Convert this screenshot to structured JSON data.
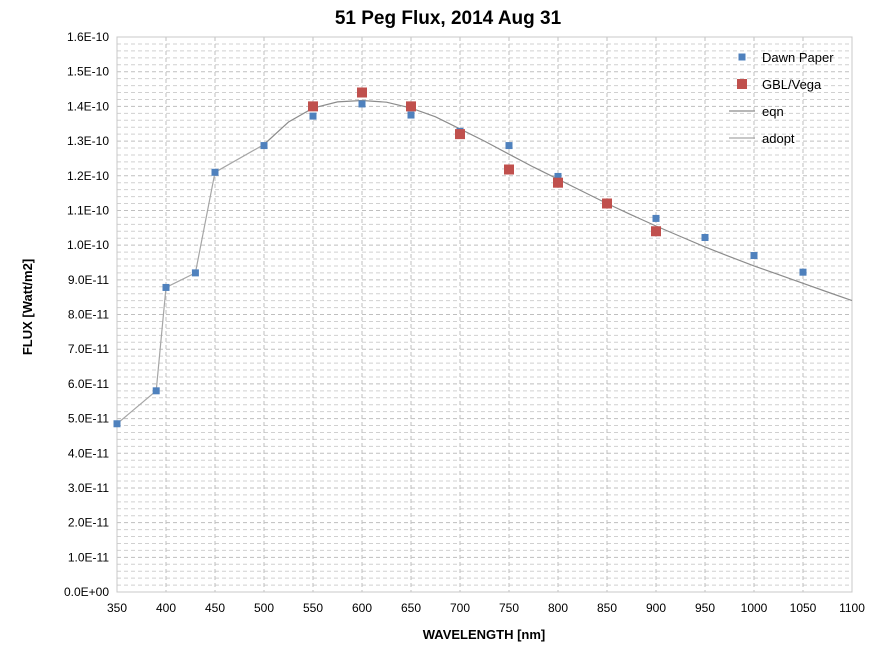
{
  "chart_data": {
    "type": "scatter",
    "title": "51 Peg Flux, 2014 Aug 31",
    "xlabel": "WAVELENGTH [nm]",
    "ylabel": "FLUX [Watt/m2]",
    "xlim": [
      350,
      1100
    ],
    "ylim": [
      0,
      1.6e-10
    ],
    "x_ticks": [
      350,
      400,
      450,
      500,
      550,
      600,
      650,
      700,
      750,
      800,
      850,
      900,
      950,
      1000,
      1050,
      1100
    ],
    "x_tick_labels": [
      "350",
      "400",
      "450",
      "500",
      "550",
      "600",
      "650",
      "700",
      "750",
      "800",
      "850",
      "900",
      "950",
      "1000",
      "1050",
      "1100"
    ],
    "y_ticks": [
      0,
      1e-11,
      2e-11,
      3e-11,
      4e-11,
      5e-11,
      6e-11,
      7e-11,
      8e-11,
      9e-11,
      1e-10,
      1.1e-10,
      1.2e-10,
      1.3e-10,
      1.4e-10,
      1.5e-10,
      1.6e-10
    ],
    "y_tick_labels": [
      "0.0E+00",
      "1.0E-11",
      "2.0E-11",
      "3.0E-11",
      "4.0E-11",
      "5.0E-11",
      "6.0E-11",
      "7.0E-11",
      "8.0E-11",
      "9.0E-11",
      "1.0E-10",
      "1.1E-10",
      "1.2E-10",
      "1.3E-10",
      "1.4E-10",
      "1.5E-10",
      "1.6E-10"
    ],
    "grid": true,
    "minor_grid": true,
    "legend_position": "top-right",
    "series": [
      {
        "name": "Dawn Paper",
        "kind": "markers",
        "color": "#4f81bd",
        "x": [
          350,
          390,
          400,
          430,
          450,
          500,
          550,
          600,
          650,
          700,
          750,
          800,
          900,
          950,
          1000,
          1050
        ],
        "y": [
          4.85e-11,
          5.8e-11,
          8.78e-11,
          9.2e-11,
          1.21e-10,
          1.287e-10,
          1.372e-10,
          1.407e-10,
          1.375e-10,
          1.328e-10,
          1.287e-10,
          1.198e-10,
          1.077e-10,
          1.022e-10,
          9.7e-11,
          9.22e-11
        ]
      },
      {
        "name": "GBL/Vega",
        "kind": "markers",
        "color": "#c0504d",
        "x": [
          550,
          600,
          650,
          700,
          750,
          800,
          850,
          900
        ],
        "y": [
          1.4e-10,
          1.44e-10,
          1.4e-10,
          1.32e-10,
          1.218e-10,
          1.18e-10,
          1.12e-10,
          1.04e-10
        ]
      },
      {
        "name": "eqn",
        "kind": "line",
        "color": "#8c8c8c",
        "x": [
          500,
          525,
          550,
          575,
          600,
          625,
          650,
          675,
          700,
          725,
          750,
          775,
          800,
          825,
          850,
          875,
          900,
          925,
          950,
          975,
          1000,
          1025,
          1050,
          1075,
          1100
        ],
        "y": [
          1.29e-10,
          1.355e-10,
          1.395e-10,
          1.413e-10,
          1.417e-10,
          1.412e-10,
          1.395e-10,
          1.37e-10,
          1.335e-10,
          1.3e-10,
          1.262e-10,
          1.225e-10,
          1.19e-10,
          1.155e-10,
          1.12e-10,
          1.087e-10,
          1.055e-10,
          1.025e-10,
          9.95e-11,
          9.67e-11,
          9.4e-11,
          9.15e-11,
          8.9e-11,
          8.65e-11,
          8.4e-11
        ]
      },
      {
        "name": "adopt",
        "kind": "line",
        "color": "#a6a6a6",
        "x": [
          350,
          390,
          400,
          430,
          450,
          500
        ],
        "y": [
          4.85e-11,
          5.8e-11,
          8.78e-11,
          9.2e-11,
          1.21e-10,
          1.29e-10
        ]
      }
    ]
  }
}
